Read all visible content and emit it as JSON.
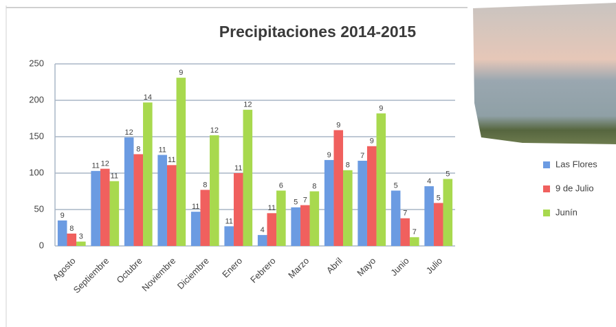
{
  "chart_data": {
    "type": "bar",
    "title": "Precipitaciones 2014-2015",
    "categories": [
      "Agosto",
      "Septiembre",
      "Octubre",
      "Noviembre",
      "Diciembre",
      "Enero",
      "Febrero",
      "Marzo",
      "Abril",
      "Mayo",
      "Junio",
      "Julio"
    ],
    "series": [
      {
        "name": "Las Flores",
        "color": "#6b9be2",
        "values": [
          35,
          103,
          149,
          125,
          47,
          27,
          15,
          53,
          118,
          117,
          76,
          82
        ],
        "labels": [
          "9",
          "11",
          "12",
          "11",
          "11",
          "11",
          "4",
          "5",
          "9",
          "7",
          "5",
          "4"
        ]
      },
      {
        "name": "9 de Julio",
        "color": "#f0605e",
        "values": [
          17,
          106,
          126,
          111,
          77,
          100,
          45,
          56,
          159,
          137,
          38,
          59
        ],
        "labels": [
          "8",
          "12",
          "8",
          "11",
          "8",
          "11",
          "11",
          "7",
          "9",
          "9",
          "7",
          "5"
        ]
      },
      {
        "name": "Junín",
        "color": "#a8d94e",
        "values": [
          6,
          89,
          197,
          231,
          152,
          187,
          76,
          75,
          104,
          182,
          12,
          92
        ],
        "labels": [
          "3",
          "11",
          "14",
          "9",
          "12",
          "12",
          "6",
          "8",
          "8",
          "9",
          "7",
          "5"
        ]
      }
    ],
    "ylim": [
      0,
      250
    ],
    "yticks": [
      0,
      50,
      100,
      150,
      200,
      250
    ],
    "grid": true
  }
}
